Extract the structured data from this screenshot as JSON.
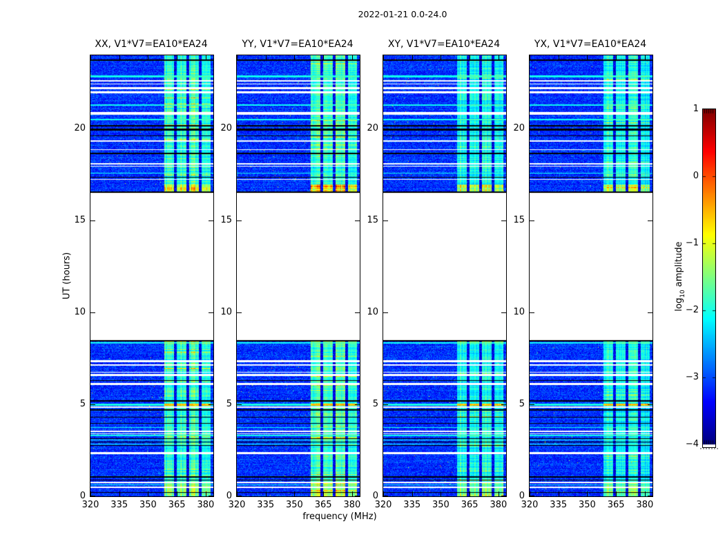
{
  "chart_data": {
    "type": "heatmap",
    "title": "2022-01-21 0.0-24.0",
    "xlabel": "frequency (MHz)",
    "ylabel": "UT (hours)",
    "x_range_mhz": [
      320,
      384
    ],
    "x_ticks": [
      320,
      335,
      350,
      365,
      380
    ],
    "y_range_hours": [
      0,
      24
    ],
    "y_ticks": [
      0,
      5,
      10,
      15,
      20
    ],
    "colormap": "jet",
    "clim": [
      -4,
      1
    ],
    "colorbar": {
      "label_parts": [
        "log",
        "10",
        " amplitude"
      ],
      "tick_labels": [
        "1",
        "0",
        "−1",
        "−2",
        "−3",
        "−4"
      ],
      "tick_values": [
        1,
        0,
        -1,
        -2,
        -3,
        -4
      ]
    },
    "panels": [
      {
        "title": "XX, V1*V7=EA10*EA24",
        "relative_band_intensity": 1.0
      },
      {
        "title": "YY, V1*V7=EA10*EA24",
        "relative_band_intensity": 1.05
      },
      {
        "title": "XY, V1*V7=EA10*EA24",
        "relative_band_intensity": 0.85
      },
      {
        "title": "YX, V1*V7=EA10*EA24",
        "relative_band_intensity": 0.85
      }
    ],
    "time_segments_hours": [
      [
        0,
        8.5
      ],
      [
        16.5,
        24
      ]
    ],
    "background_level": -3.15,
    "noise_sigma": 0.28,
    "band": {
      "span_mhz": [
        358.5,
        382.5
      ],
      "stripes_mhz": [
        [
          358.5,
          363.5
        ],
        [
          365,
          370
        ],
        [
          371.5,
          376.5
        ],
        [
          378,
          382.5
        ]
      ],
      "stripe_gains": [
        1.0,
        0.95,
        1.05,
        0.9
      ]
    },
    "boost_windows": [
      [
        16.5,
        17.0,
        0.65
      ],
      [
        0.0,
        0.8,
        0.35
      ],
      [
        8.3,
        8.5,
        0.35
      ]
    ],
    "white_rows": [
      [
        22.6,
        2
      ],
      [
        22.45,
        1
      ],
      [
        22.2,
        3
      ],
      [
        22.0,
        3
      ],
      [
        20.85,
        4
      ],
      [
        19.35,
        2
      ],
      [
        18.85,
        1
      ],
      [
        18.1,
        2
      ],
      [
        17.95,
        1
      ],
      [
        17.25,
        1
      ],
      [
        7.35,
        3
      ],
      [
        7.15,
        2
      ],
      [
        6.75,
        1
      ],
      [
        6.6,
        3
      ],
      [
        6.1,
        3
      ],
      [
        4.85,
        2
      ],
      [
        3.55,
        2
      ],
      [
        3.42,
        1
      ],
      [
        2.35,
        3
      ],
      [
        0.75,
        2
      ],
      [
        0.5,
        2
      ]
    ],
    "black_rows": [
      [
        23.75,
        2
      ],
      [
        20.15,
        2
      ],
      [
        19.95,
        3
      ],
      [
        19.6,
        1
      ],
      [
        18.65,
        2
      ],
      [
        17.35,
        1
      ],
      [
        16.55,
        2
      ],
      [
        8.48,
        2
      ],
      [
        6.3,
        1
      ],
      [
        5.2,
        2
      ],
      [
        4.7,
        2
      ],
      [
        4.3,
        1
      ],
      [
        3.95,
        1
      ],
      [
        3.15,
        1
      ],
      [
        2.95,
        1
      ],
      [
        2.75,
        1
      ],
      [
        1.05,
        2
      ],
      [
        0.9,
        1
      ],
      [
        0.2,
        1
      ]
    ],
    "bright_rows": [
      [
        22.85,
        3
      ],
      [
        21.3,
        2
      ],
      [
        20.5,
        2
      ],
      [
        17.6,
        1
      ],
      [
        8.35,
        2
      ],
      [
        3.75,
        1
      ],
      [
        3.3,
        2
      ],
      [
        3.05,
        1
      ],
      [
        2.85,
        1
      ],
      [
        0.62,
        1
      ]
    ],
    "hot_row": {
      "t": 5.0,
      "w": 3
    }
  }
}
